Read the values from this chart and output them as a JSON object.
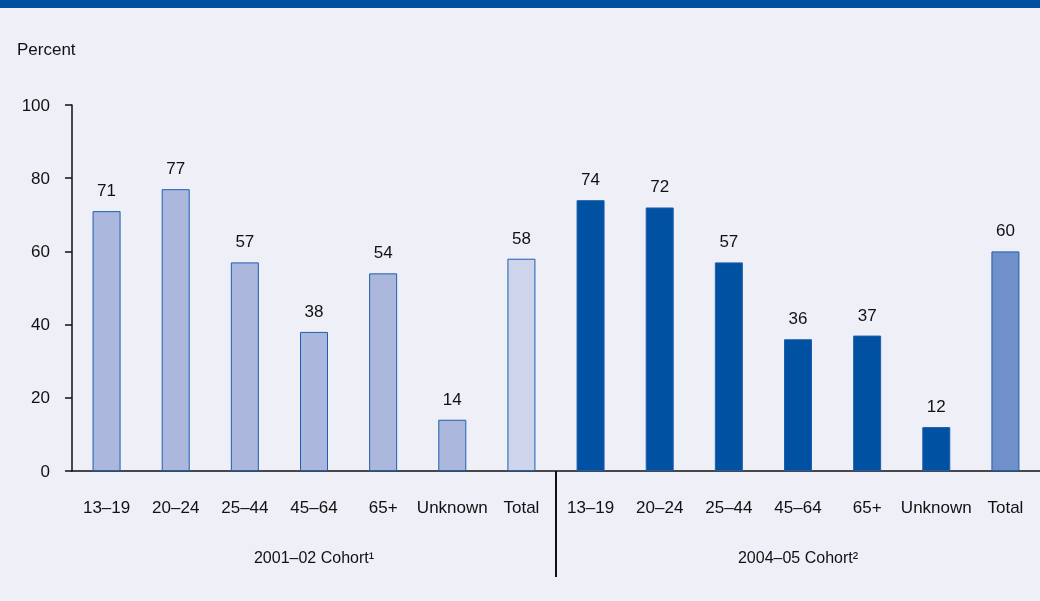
{
  "chart_data": {
    "type": "bar",
    "ylabel": "Percent",
    "categories": [
      "13–19",
      "20–24",
      "25–44",
      "45–64",
      "65+",
      "Unknown",
      "Total",
      "13–19",
      "20–24",
      "25–44",
      "45–64",
      "65+",
      "Unknown",
      "Total"
    ],
    "values": [
      71,
      77,
      57,
      38,
      54,
      14,
      58,
      74,
      72,
      57,
      36,
      37,
      12,
      60
    ],
    "colors": [
      "#abb7dc",
      "#abb7dc",
      "#abb7dc",
      "#abb7dc",
      "#abb7dc",
      "#abb7dc",
      "#cdd4ec",
      "#0051a2",
      "#0051a2",
      "#0051a2",
      "#0051a2",
      "#0051a2",
      "#0051a2",
      "#6f90c8"
    ],
    "ylim": [
      0,
      100
    ],
    "yticks": [
      0,
      20,
      40,
      60,
      80,
      100
    ],
    "data_labels": true,
    "annotations": [
      "2001–02 Cohort¹",
      "2004–05 Cohort²"
    ]
  }
}
